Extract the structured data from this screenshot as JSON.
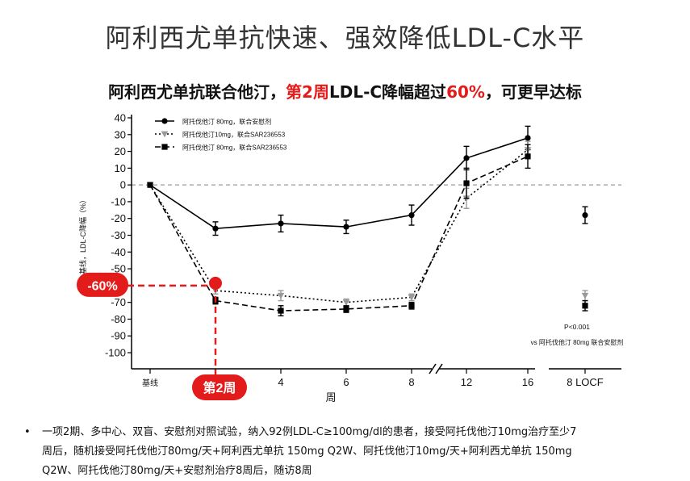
{
  "title": "阿利西尤单抗快速、强效降低LDL-C水平",
  "subtitle": {
    "part1": "阿利西尤单抗联合他汀，",
    "part2": "第2周",
    "part3": "LDL-C降幅超过",
    "part4": "60%",
    "part5": "，可更早达标"
  },
  "chart_data": {
    "type": "line",
    "xlabel": "周",
    "ylabel": "基线，LDL-C降幅（%）",
    "ylim": [
      -100,
      40
    ],
    "yticks": [
      40,
      30,
      20,
      10,
      0,
      -10,
      -20,
      -30,
      -40,
      -50,
      -60,
      -70,
      -80,
      -90,
      -100
    ],
    "x_tick_labels": [
      {
        "x": 0,
        "label": "基线"
      },
      {
        "x": 4,
        "label": "4"
      },
      {
        "x": 6,
        "label": "6"
      },
      {
        "x": 8,
        "label": "8"
      },
      {
        "x": 12,
        "label": "12"
      },
      {
        "x": 16,
        "label": "16"
      },
      {
        "x": "LOCF",
        "label": "8 LOCF"
      }
    ],
    "series": [
      {
        "name": "阿托伐他汀 80mg，联合安慰剂",
        "style": "solid",
        "marker": "circle",
        "color": "#000000",
        "points": [
          {
            "x": 0,
            "y": 0,
            "err": 0
          },
          {
            "x": 2,
            "y": -26,
            "err": 4
          },
          {
            "x": 4,
            "y": -23,
            "err": 5
          },
          {
            "x": 6,
            "y": -25,
            "err": 4
          },
          {
            "x": 8,
            "y": -18,
            "err": 6
          },
          {
            "x": 12,
            "y": 16,
            "err": 7
          },
          {
            "x": 16,
            "y": 28,
            "err": 7
          }
        ],
        "locf": {
          "y": -18,
          "err": 5
        }
      },
      {
        "name": "阿托伐他汀10mg，联合SAR236553",
        "style": "dotted",
        "marker": "triangle-down",
        "color": "#999999",
        "points": [
          {
            "x": 0,
            "y": 0,
            "err": 0
          },
          {
            "x": 2,
            "y": -63,
            "err": 2
          },
          {
            "x": 4,
            "y": -66,
            "err": 3
          },
          {
            "x": 6,
            "y": -70,
            "err": 2
          },
          {
            "x": 8,
            "y": -67,
            "err": 2
          },
          {
            "x": 12,
            "y": -8,
            "err": 6
          },
          {
            "x": 16,
            "y": 21,
            "err": 5
          }
        ],
        "locf": {
          "y": -66,
          "err": 3
        }
      },
      {
        "name": "阿托伐他汀 80mg，联合SAR236553",
        "style": "dashed",
        "marker": "square",
        "color": "#000000",
        "points": [
          {
            "x": 0,
            "y": 0,
            "err": 0
          },
          {
            "x": 2,
            "y": -69,
            "err": 2
          },
          {
            "x": 4,
            "y": -75,
            "err": 3
          },
          {
            "x": 6,
            "y": -74,
            "err": 2
          },
          {
            "x": 8,
            "y": -72,
            "err": 2
          },
          {
            "x": 12,
            "y": 1,
            "err": 9
          },
          {
            "x": 16,
            "y": 17,
            "err": 7
          }
        ],
        "locf": {
          "y": -72,
          "err": 3
        }
      }
    ],
    "annotations": {
      "pvalue": "P<0.001",
      "pvalue_note": "vs 阿托伐他汀 80mg 联合安慰剂",
      "callout_percent": "-60%",
      "callout_percent_y": -60,
      "callout_week": "第2周",
      "callout_week_x": 2,
      "accent_color": "#e41b1b"
    }
  },
  "footnote": {
    "bullet": "•",
    "line1": "一项2期、多中心、双盲、安慰剂对照试验，纳入92例LDL-C≥100mg/dl的患者，接受阿托伐他汀10mg治疗至少7",
    "line2": "周后，随机接受阿托伐他汀80mg/天+阿利西尤单抗 150mg Q2W、阿托伐他汀10mg/天+阿利西尤单抗 150mg",
    "line3": "Q2W、阿托伐他汀80mg/天+安慰剂治疗8周后，随访8周"
  }
}
